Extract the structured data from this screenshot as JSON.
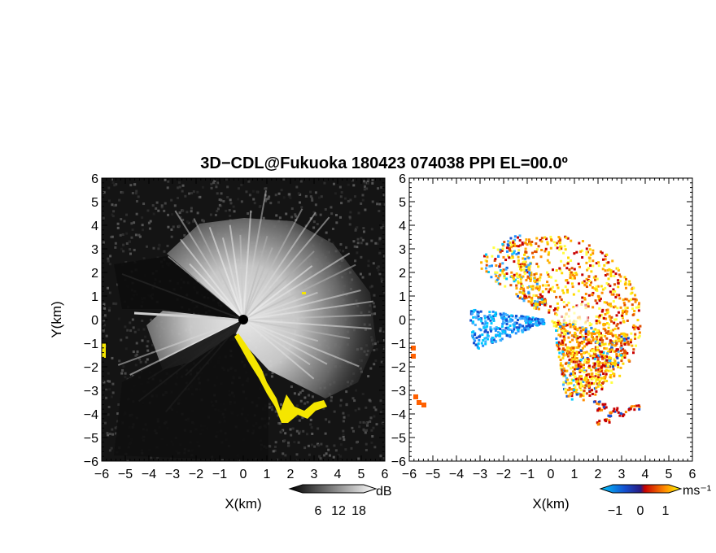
{
  "title": "3D−CDL@Fukuoka 180423 074038 PPI EL=00.0º",
  "chart_data": [
    {
      "type": "heatmap",
      "panel": "left",
      "quantity_unit": "dB",
      "xlabel": "X(km)",
      "ylabel": "Y(km)",
      "xlim": [
        -6,
        6
      ],
      "ylim": [
        -6,
        6
      ],
      "xticks": [
        "−6",
        "−5",
        "−4",
        "−3",
        "−2",
        "−1",
        "0",
        "1",
        "2",
        "3",
        "4",
        "5",
        "6"
      ],
      "yticks": [
        "6",
        "5",
        "4",
        "3",
        "2",
        "1",
        "0",
        "−1",
        "−2",
        "−3",
        "−4",
        "−5",
        "−6"
      ],
      "colorbar": {
        "ticks": [
          "6",
          "12",
          "18"
        ],
        "unit": "dB",
        "colors": [
          "#000000",
          "#ffffff"
        ]
      },
      "highlight_color": "#f5e600"
    },
    {
      "type": "heatmap",
      "panel": "right",
      "quantity_unit": "ms⁻¹",
      "xlabel": "X(km)",
      "xlim": [
        -6,
        6
      ],
      "ylim": [
        -6,
        6
      ],
      "xticks": [
        "−6",
        "−5",
        "−4",
        "−3",
        "−2",
        "−1",
        "0",
        "1",
        "2",
        "3",
        "4",
        "5",
        "6"
      ],
      "yticks": [
        "6",
        "5",
        "4",
        "3",
        "2",
        "1",
        "0",
        "−1",
        "−2",
        "−3",
        "−4",
        "−5",
        "−6"
      ],
      "colorbar": {
        "ticks": [
          "−1",
          "0",
          "1"
        ],
        "unit": "ms⁻¹",
        "colors": [
          "#00c8ff",
          "#1432c8",
          "#c80000",
          "#ff8c00",
          "#ffff00"
        ]
      }
    }
  ]
}
